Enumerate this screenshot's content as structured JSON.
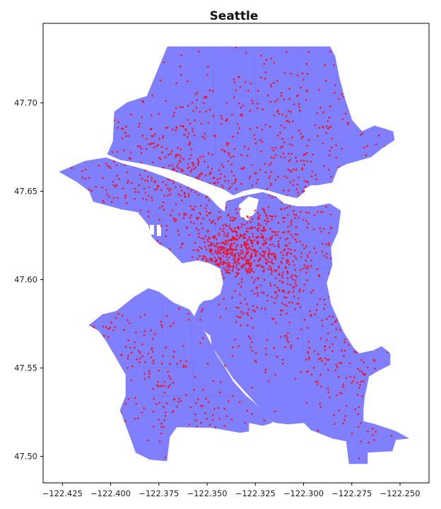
{
  "chart_data": {
    "type": "scatter",
    "title": "Seattle",
    "xlabel": "",
    "ylabel": "",
    "xlim": [
      -122.435,
      -122.235
    ],
    "ylim": [
      47.485,
      47.745
    ],
    "x_ticks": [
      -122.425,
      -122.4,
      -122.375,
      -122.35,
      -122.325,
      -122.3,
      -122.275,
      -122.25
    ],
    "x_tick_labels": [
      "−122.425",
      "−122.400",
      "−122.375",
      "−122.350",
      "−122.325",
      "−122.300",
      "−122.275",
      "−122.250"
    ],
    "y_ticks": [
      47.5,
      47.55,
      47.6,
      47.65,
      47.7
    ],
    "y_tick_labels": [
      "47.50",
      "47.55",
      "47.60",
      "47.65",
      "47.70"
    ],
    "grid": false,
    "land_color": "#8080ff",
    "water_color": "#ffffff",
    "point_color": "#ff0000",
    "points_note": "clusters",
    "clusters": [
      {
        "x": -122.333,
        "y": 47.618,
        "spread_x": 0.012,
        "spread_y": 0.008,
        "count": 260
      },
      {
        "x": -122.342,
        "y": 47.61,
        "spread_x": 0.008,
        "spread_y": 0.005,
        "count": 120
      },
      {
        "x": -122.318,
        "y": 47.622,
        "spread_x": 0.014,
        "spread_y": 0.01,
        "count": 180
      },
      {
        "x": -122.31,
        "y": 47.6,
        "spread_x": 0.014,
        "spread_y": 0.012,
        "count": 140
      },
      {
        "x": -122.34,
        "y": 47.685,
        "spread_x": 0.04,
        "spread_y": 0.022,
        "count": 260
      },
      {
        "x": -122.3,
        "y": 47.69,
        "spread_x": 0.022,
        "spread_y": 0.025,
        "count": 150
      },
      {
        "x": -122.385,
        "y": 47.675,
        "spread_x": 0.02,
        "spread_y": 0.012,
        "count": 110
      },
      {
        "x": -122.35,
        "y": 47.657,
        "spread_x": 0.02,
        "spread_y": 0.006,
        "count": 110
      },
      {
        "x": -122.355,
        "y": 47.64,
        "spread_x": 0.014,
        "spread_y": 0.012,
        "count": 110
      },
      {
        "x": -122.395,
        "y": 47.65,
        "spread_x": 0.018,
        "spread_y": 0.01,
        "count": 60
      },
      {
        "x": -122.3,
        "y": 47.645,
        "spread_x": 0.01,
        "spread_y": 0.008,
        "count": 70
      },
      {
        "x": -122.288,
        "y": 47.56,
        "spread_x": 0.014,
        "spread_y": 0.02,
        "count": 140
      },
      {
        "x": -122.268,
        "y": 47.54,
        "spread_x": 0.01,
        "spread_y": 0.018,
        "count": 70
      },
      {
        "x": -122.385,
        "y": 47.555,
        "spread_x": 0.018,
        "spread_y": 0.022,
        "count": 160
      },
      {
        "x": -122.355,
        "y": 47.525,
        "spread_x": 0.015,
        "spread_y": 0.01,
        "count": 70
      },
      {
        "x": -122.41,
        "y": 47.575,
        "spread_x": 0.008,
        "spread_y": 0.006,
        "count": 25
      },
      {
        "x": -122.325,
        "y": 47.575,
        "spread_x": 0.012,
        "spread_y": 0.018,
        "count": 60
      }
    ]
  }
}
